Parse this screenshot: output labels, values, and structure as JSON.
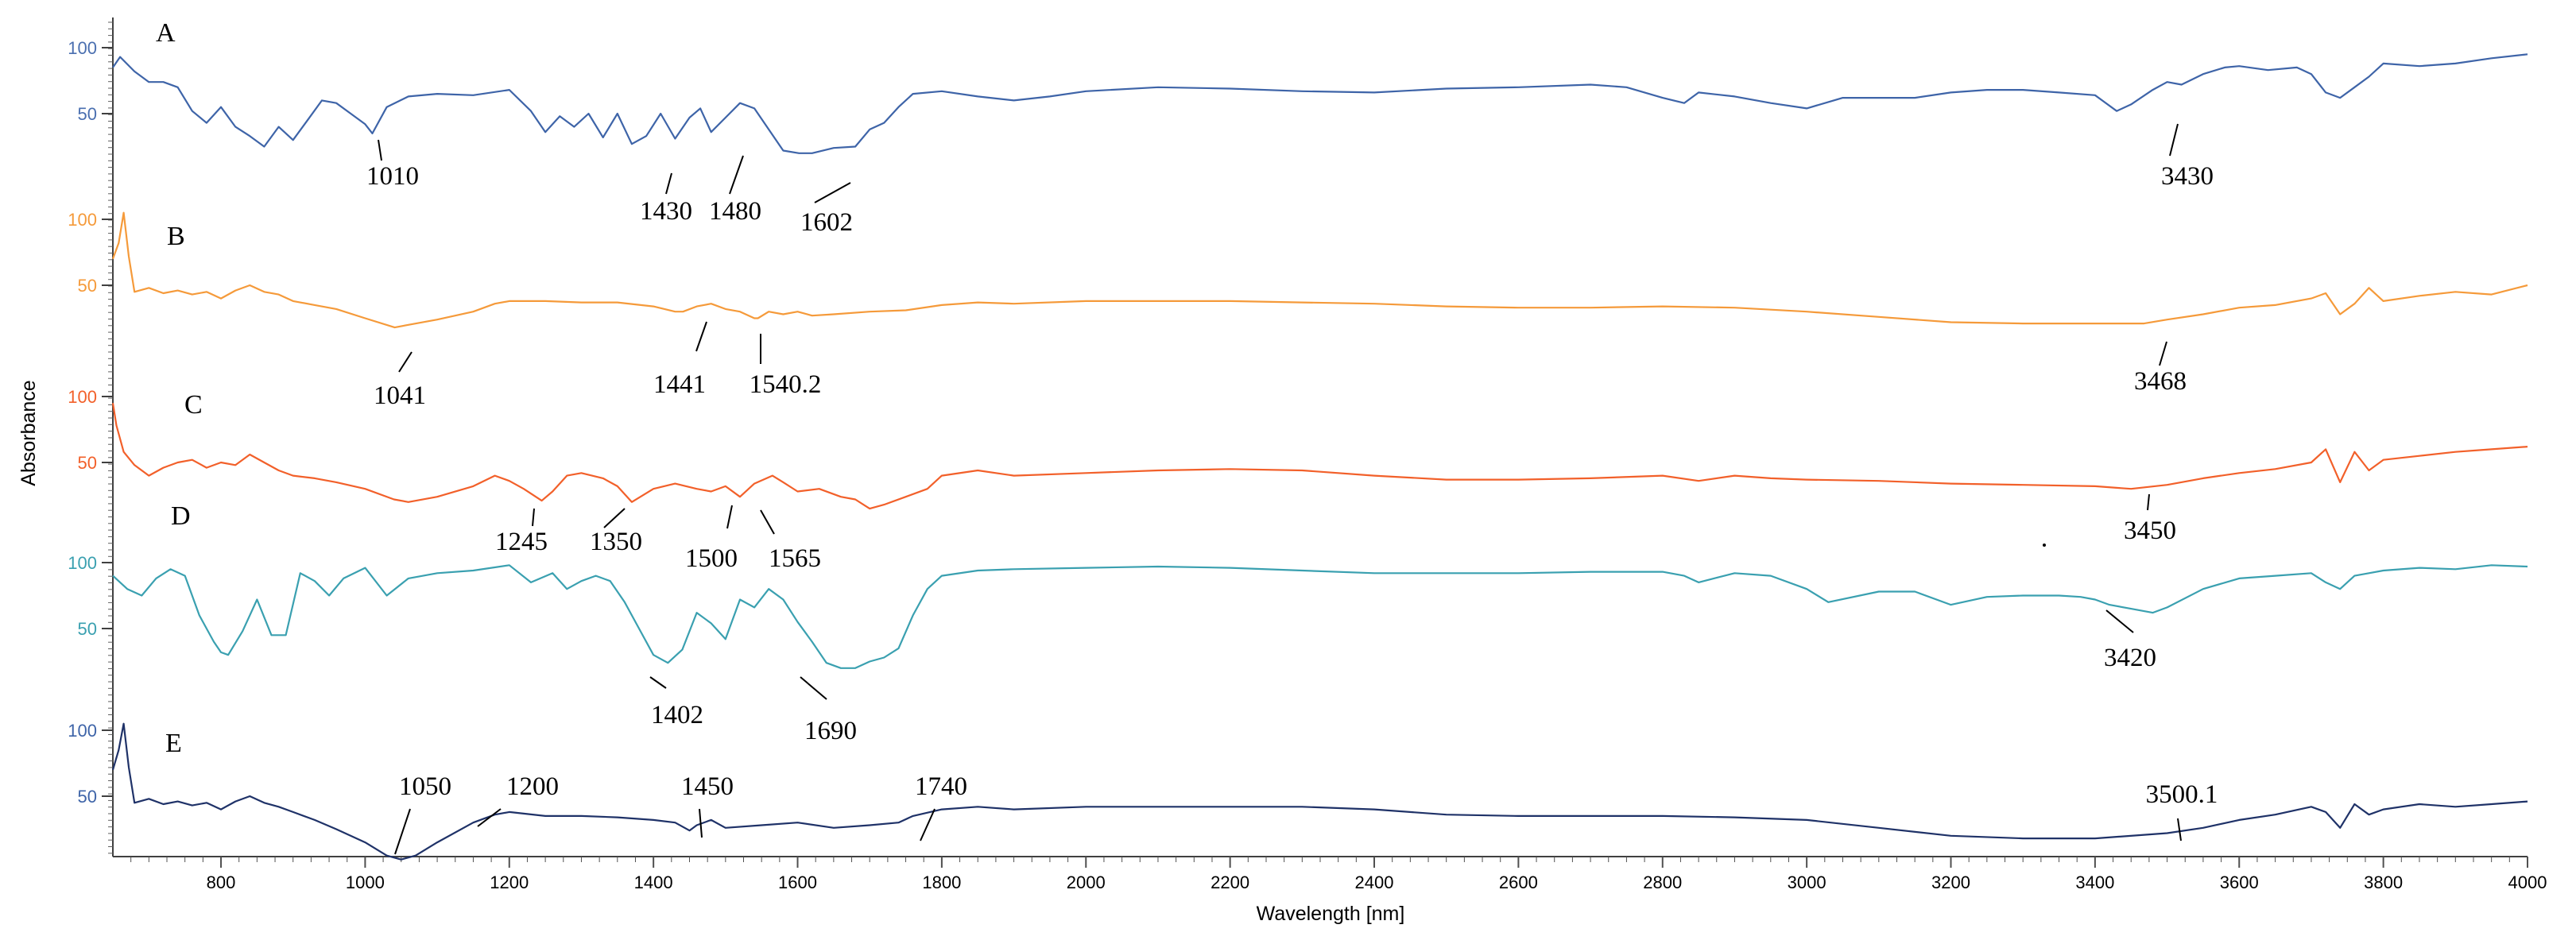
{
  "chart_data": {
    "type": "line",
    "title": "",
    "xlabel": "Wavelength [nm]",
    "ylabel": "Absorbance",
    "xlim": [
      650,
      4000
    ],
    "xticks": [
      800,
      1000,
      1200,
      1400,
      1600,
      1800,
      2000,
      2200,
      2400,
      2600,
      2800,
      3000,
      3200,
      3400,
      3600,
      3800,
      4000
    ],
    "ylim": [
      0,
      115
    ],
    "yticks": [
      50,
      100
    ],
    "grid": false,
    "legend": "none",
    "series": [
      {
        "name": "A",
        "color": "#3e64a8",
        "x": [
          650,
          660,
          680,
          700,
          720,
          740,
          760,
          780,
          800,
          820,
          840,
          860,
          880,
          900,
          920,
          940,
          960,
          980,
          1000,
          1010,
          1030,
          1060,
          1100,
          1150,
          1200,
          1230,
          1250,
          1270,
          1290,
          1310,
          1330,
          1350,
          1370,
          1390,
          1410,
          1430,
          1450,
          1465,
          1480,
          1500,
          1520,
          1540,
          1560,
          1580,
          1602,
          1620,
          1650,
          1680,
          1700,
          1720,
          1740,
          1760,
          1800,
          1850,
          1900,
          1950,
          2000,
          2100,
          2200,
          2300,
          2400,
          2500,
          2600,
          2700,
          2750,
          2800,
          2830,
          2850,
          2900,
          2950,
          3000,
          3050,
          3100,
          3150,
          3200,
          3250,
          3300,
          3350,
          3400,
          3430,
          3450,
          3480,
          3500,
          3520,
          3550,
          3580,
          3600,
          3640,
          3680,
          3700,
          3720,
          3740,
          3760,
          3780,
          3800,
          3850,
          3900,
          3950,
          4000
        ],
        "values": [
          85,
          93,
          82,
          74,
          74,
          70,
          52,
          43,
          55,
          40,
          33,
          25,
          40,
          30,
          45,
          60,
          58,
          50,
          42,
          35,
          55,
          63,
          65,
          64,
          68,
          52,
          36,
          48,
          40,
          50,
          32,
          50,
          27,
          33,
          50,
          31,
          47,
          54,
          36,
          47,
          58,
          54,
          38,
          22,
          20,
          20,
          24,
          25,
          38,
          43,
          55,
          65,
          67,
          63,
          60,
          63,
          67,
          70,
          69,
          67,
          66,
          69,
          70,
          72,
          70,
          62,
          58,
          66,
          63,
          58,
          54,
          62,
          62,
          62,
          66,
          68,
          68,
          66,
          64,
          52,
          57,
          68,
          74,
          72,
          80,
          85,
          86,
          83,
          85,
          80,
          66,
          62,
          70,
          78,
          88,
          86,
          88,
          92,
          95
        ]
      },
      {
        "name": "B",
        "color": "#f59a3a",
        "x": [
          650,
          658,
          665,
          672,
          680,
          700,
          720,
          740,
          760,
          780,
          800,
          820,
          840,
          860,
          880,
          900,
          930,
          960,
          1000,
          1041,
          1060,
          1100,
          1150,
          1180,
          1200,
          1250,
          1300,
          1350,
          1400,
          1430,
          1441,
          1460,
          1480,
          1500,
          1520,
          1540,
          1545,
          1560,
          1580,
          1600,
          1620,
          1650,
          1700,
          1750,
          1800,
          1850,
          1900,
          2000,
          2100,
          2200,
          2300,
          2400,
          2500,
          2600,
          2700,
          2800,
          2900,
          3000,
          3100,
          3200,
          3300,
          3400,
          3468,
          3500,
          3550,
          3600,
          3650,
          3700,
          3720,
          3740,
          3760,
          3780,
          3800,
          3850,
          3900,
          3950,
          4000
        ],
        "values": [
          70,
          82,
          105,
          72,
          45,
          48,
          44,
          46,
          43,
          45,
          40,
          46,
          50,
          45,
          43,
          38,
          35,
          32,
          25,
          18,
          20,
          24,
          30,
          36,
          38,
          38,
          37,
          37,
          34,
          30,
          30,
          34,
          36,
          32,
          30,
          25,
          25,
          30,
          28,
          30,
          27,
          28,
          30,
          31,
          35,
          37,
          36,
          38,
          38,
          38,
          37,
          36,
          34,
          33,
          33,
          34,
          33,
          30,
          26,
          22,
          21,
          21,
          21,
          24,
          28,
          33,
          35,
          40,
          44,
          28,
          36,
          48,
          38,
          42,
          45,
          43,
          50
        ]
      },
      {
        "name": "C",
        "color": "#f2602a",
        "x": [
          650,
          655,
          665,
          680,
          700,
          720,
          740,
          760,
          780,
          800,
          820,
          840,
          860,
          880,
          900,
          930,
          960,
          1000,
          1040,
          1060,
          1100,
          1150,
          1180,
          1200,
          1220,
          1245,
          1260,
          1280,
          1300,
          1330,
          1350,
          1370,
          1400,
          1430,
          1460,
          1480,
          1500,
          1520,
          1540,
          1565,
          1580,
          1600,
          1630,
          1660,
          1680,
          1700,
          1720,
          1750,
          1780,
          1800,
          1850,
          1900,
          2000,
          2100,
          2200,
          2300,
          2400,
          2500,
          2600,
          2700,
          2800,
          2850,
          2900,
          2950,
          3000,
          3100,
          3200,
          3300,
          3400,
          3450,
          3500,
          3550,
          3600,
          3650,
          3700,
          3720,
          3740,
          3760,
          3780,
          3800,
          3850,
          3900,
          3950,
          4000
        ],
        "values": [
          95,
          78,
          58,
          48,
          40,
          46,
          50,
          52,
          46,
          50,
          48,
          56,
          50,
          44,
          40,
          38,
          35,
          30,
          22,
          20,
          24,
          32,
          40,
          36,
          30,
          21,
          28,
          40,
          42,
          38,
          32,
          20,
          30,
          34,
          30,
          28,
          32,
          24,
          34,
          40,
          35,
          28,
          30,
          24,
          22,
          15,
          18,
          24,
          30,
          40,
          44,
          40,
          42,
          44,
          45,
          44,
          40,
          37,
          37,
          38,
          40,
          36,
          40,
          38,
          37,
          36,
          34,
          33,
          32,
          30,
          33,
          38,
          42,
          45,
          50,
          60,
          35,
          58,
          44,
          52,
          55,
          58,
          60,
          62
        ]
      },
      {
        "name": "D",
        "color": "#3aa0b0",
        "x": [
          650,
          670,
          690,
          710,
          730,
          750,
          770,
          790,
          800,
          810,
          830,
          850,
          870,
          890,
          910,
          930,
          950,
          970,
          1000,
          1030,
          1060,
          1100,
          1150,
          1200,
          1230,
          1260,
          1280,
          1300,
          1320,
          1340,
          1360,
          1380,
          1400,
          1420,
          1440,
          1460,
          1480,
          1500,
          1520,
          1540,
          1560,
          1580,
          1600,
          1620,
          1640,
          1660,
          1680,
          1700,
          1720,
          1740,
          1760,
          1780,
          1800,
          1850,
          1900,
          2000,
          2100,
          2200,
          2300,
          2400,
          2500,
          2600,
          2700,
          2800,
          2830,
          2850,
          2900,
          2950,
          3000,
          3030,
          3100,
          3150,
          3200,
          3250,
          3300,
          3350,
          3380,
          3400,
          3420,
          3450,
          3480,
          3500,
          3550,
          3600,
          3650,
          3700,
          3720,
          3740,
          3760,
          3780,
          3800,
          3850,
          3900,
          3950,
          4000
        ],
        "values": [
          90,
          80,
          75,
          88,
          95,
          90,
          60,
          40,
          32,
          30,
          48,
          72,
          45,
          45,
          92,
          86,
          75,
          88,
          96,
          75,
          88,
          92,
          94,
          98,
          85,
          92,
          80,
          86,
          90,
          86,
          70,
          50,
          30,
          24,
          34,
          62,
          54,
          42,
          72,
          66,
          80,
          72,
          55,
          40,
          24,
          20,
          20,
          25,
          28,
          35,
          60,
          80,
          90,
          94,
          95,
          96,
          97,
          96,
          94,
          92,
          92,
          92,
          93,
          93,
          90,
          85,
          92,
          90,
          80,
          70,
          78,
          78,
          68,
          74,
          75,
          75,
          74,
          72,
          68,
          65,
          62,
          66,
          80,
          88,
          90,
          92,
          85,
          80,
          90,
          92,
          94,
          96,
          95,
          98,
          97
        ]
      },
      {
        "name": "E",
        "color": "#1f3268",
        "x": [
          650,
          658,
          665,
          672,
          680,
          700,
          720,
          740,
          760,
          780,
          800,
          820,
          840,
          860,
          880,
          900,
          930,
          960,
          1000,
          1030,
          1050,
          1070,
          1100,
          1150,
          1180,
          1200,
          1250,
          1300,
          1350,
          1400,
          1430,
          1450,
          1460,
          1480,
          1500,
          1550,
          1600,
          1650,
          1700,
          1740,
          1760,
          1800,
          1850,
          1900,
          2000,
          2100,
          2200,
          2300,
          2400,
          2500,
          2600,
          2700,
          2800,
          2900,
          3000,
          3100,
          3200,
          3300,
          3400,
          3500,
          3550,
          3600,
          3650,
          3700,
          3720,
          3740,
          3760,
          3780,
          3800,
          3850,
          3900,
          3950,
          4000
        ],
        "values": [
          70,
          85,
          105,
          72,
          45,
          48,
          44,
          46,
          43,
          45,
          40,
          46,
          50,
          45,
          42,
          38,
          32,
          25,
          15,
          5,
          2,
          5,
          15,
          30,
          36,
          38,
          35,
          35,
          34,
          32,
          30,
          24,
          28,
          32,
          26,
          28,
          30,
          26,
          28,
          30,
          35,
          40,
          42,
          40,
          42,
          42,
          42,
          42,
          40,
          36,
          35,
          35,
          35,
          34,
          32,
          26,
          20,
          18,
          18,
          22,
          26,
          32,
          36,
          42,
          38,
          26,
          44,
          36,
          40,
          44,
          42,
          44,
          46
        ]
      }
    ],
    "labels": [
      {
        "series": "A",
        "text": "A"
      },
      {
        "series": "B",
        "text": "B"
      },
      {
        "series": "C",
        "text": "C"
      },
      {
        "series": "D",
        "text": "D"
      },
      {
        "series": "E",
        "text": "E"
      }
    ],
    "annotations": [
      {
        "series": "A",
        "text": "1010"
      },
      {
        "series": "A",
        "text": "1430"
      },
      {
        "series": "A",
        "text": "1480"
      },
      {
        "series": "A",
        "text": "1602"
      },
      {
        "series": "A",
        "text": "3430"
      },
      {
        "series": "B",
        "text": "1041"
      },
      {
        "series": "B",
        "text": "1441"
      },
      {
        "series": "B",
        "text": "1540.2"
      },
      {
        "series": "B",
        "text": "3468"
      },
      {
        "series": "C",
        "text": "1245"
      },
      {
        "series": "C",
        "text": "1350"
      },
      {
        "series": "C",
        "text": "1500"
      },
      {
        "series": "C",
        "text": "1565"
      },
      {
        "series": "C",
        "text": "3450"
      },
      {
        "series": "D",
        "text": "1402"
      },
      {
        "series": "D",
        "text": "1690"
      },
      {
        "series": "D",
        "text": "3420"
      },
      {
        "series": "E",
        "text": "1050"
      },
      {
        "series": "E",
        "text": "1200"
      },
      {
        "series": "E",
        "text": "1450"
      },
      {
        "series": "E",
        "text": "1740"
      },
      {
        "series": "E",
        "text": "3500.1"
      }
    ]
  }
}
